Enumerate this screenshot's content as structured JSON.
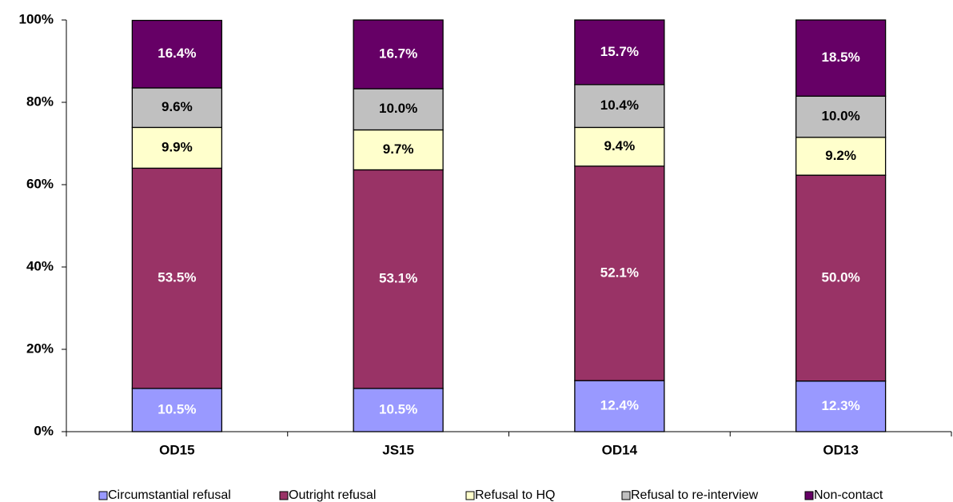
{
  "chart_data": {
    "type": "stacked_bar",
    "categories": [
      "OD15",
      "JS15",
      "OD14",
      "OD13"
    ],
    "series": [
      {
        "name": "Circumstantial refusal",
        "color": "#9999ff",
        "values": [
          10.5,
          10.5,
          12.4,
          12.3
        ],
        "value_labels": [
          "10.5%",
          "10.5%",
          "12.4%",
          "12.3%"
        ]
      },
      {
        "name": "Outright refusal",
        "color": "#993366",
        "values": [
          53.5,
          53.1,
          52.1,
          50.0
        ],
        "value_labels": [
          "53.5%",
          "53.1%",
          "52.1%",
          "50.0%"
        ]
      },
      {
        "name": "Refusal to HQ",
        "color": "#ffffcc",
        "values": [
          9.9,
          9.7,
          9.4,
          9.2
        ],
        "value_labels": [
          "9.9%",
          "9.7%",
          "9.4%",
          "9.2%"
        ]
      },
      {
        "name": "Refusal to re-interview",
        "color": "#c0c0c0",
        "values": [
          9.6,
          10.0,
          10.4,
          10.0
        ],
        "value_labels": [
          "9.6%",
          "10.0%",
          "10.4%",
          "10.0%"
        ]
      },
      {
        "name": "Non-contact",
        "color": "#660066",
        "values": [
          16.4,
          16.7,
          15.7,
          18.5
        ],
        "value_labels": [
          "16.4%",
          "16.7%",
          "15.7%",
          "18.5%"
        ]
      }
    ],
    "ylim": [
      0,
      100
    ],
    "yticks": [
      {
        "value": 0,
        "label": "0%"
      },
      {
        "value": 20,
        "label": "20%"
      },
      {
        "value": 40,
        "label": "40%"
      },
      {
        "value": 60,
        "label": "60%"
      },
      {
        "value": 80,
        "label": "80%"
      },
      {
        "value": 100,
        "label": "100%"
      }
    ],
    "grid": false,
    "legend": "bottom"
  }
}
